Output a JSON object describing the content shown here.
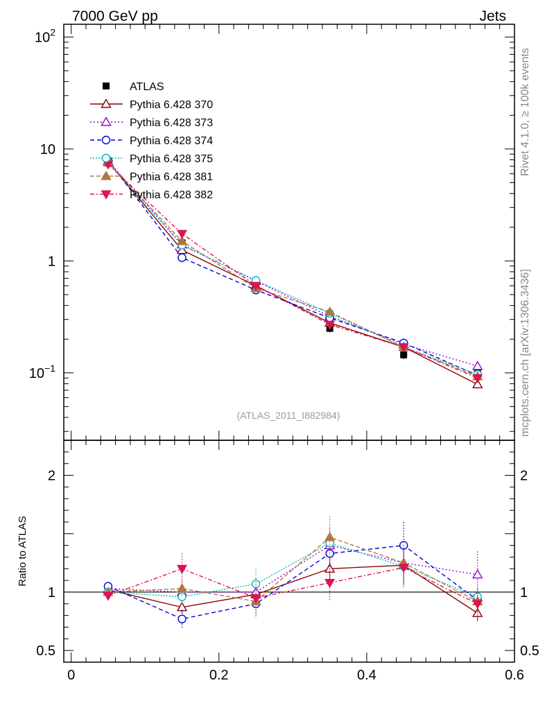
{
  "header": {
    "left": "7000 GeV pp",
    "right": "Jets"
  },
  "side_labels": {
    "rivet": "Rivet 4.1.0, ≥ 100k events",
    "mcplots": "mcplots.cern.ch [arXiv:1306.3436]"
  },
  "chart_data": {
    "type": "line",
    "analysis_label": "(ATLAS_2011_I882984)",
    "x": [
      0.05,
      0.15,
      0.25,
      0.35,
      0.45,
      0.55
    ],
    "xlim": [
      -0.01,
      0.6
    ],
    "x_ticks": [
      0,
      0.2,
      0.4,
      0.6
    ],
    "x_tick_labels": [
      "0",
      "0.2",
      "0.4",
      "0.6"
    ],
    "main": {
      "yscale": "log",
      "ylim": [
        0.025,
        130
      ],
      "y_tick_labels": [
        {
          "value": 100,
          "base": "10",
          "exp": "2"
        },
        {
          "value": 10,
          "base": "10",
          "exp": ""
        },
        {
          "value": 1,
          "base": "1",
          "exp": ""
        },
        {
          "value": 0.1,
          "base": "10",
          "exp": "−1"
        }
      ]
    },
    "ratio": {
      "ylabel": "Ratio to ATLAS",
      "ylim": [
        0.4,
        2.3
      ],
      "y_tick_labels": [
        {
          "value": 2,
          "label": "2"
        },
        {
          "value": 1,
          "label": "1"
        },
        {
          "value": 0.5,
          "label": "0.5"
        }
      ]
    },
    "data": {
      "name": "ATLAS",
      "color": "#000000",
      "values": [
        7.5,
        1.45,
        0.62,
        0.25,
        0.145,
        0.1
      ],
      "errors": [
        0.3,
        0.08,
        0.04,
        0.02,
        0.012,
        0.008
      ]
    },
    "series": [
      {
        "name": "Pythia 6.428 370",
        "color": "#8b0000",
        "marker": "tri-up-open",
        "dash": "",
        "values": [
          7.7,
          1.25,
          0.6,
          0.28,
          0.17,
          0.079
        ],
        "ratio": [
          1.02,
          0.87,
          0.98,
          1.2,
          1.23,
          0.82
        ],
        "rerr": [
          0.03,
          0.05,
          0.1,
          0.12,
          0.16,
          0.07
        ]
      },
      {
        "name": "Pythia 6.428 373",
        "color": "#9400d3",
        "marker": "tri-up-open",
        "dash": "2,3",
        "values": [
          7.8,
          1.4,
          0.66,
          0.32,
          0.18,
          0.115
        ],
        "ratio": [
          1.03,
          1.0,
          1.0,
          1.4,
          1.25,
          1.15
        ],
        "rerr": [
          0.03,
          0.07,
          0.12,
          0.15,
          0.18,
          0.2
        ]
      },
      {
        "name": "Pythia 6.428 374",
        "color": "#0000dd",
        "marker": "circle-open",
        "dash": "6,4",
        "values": [
          7.9,
          1.07,
          0.55,
          0.31,
          0.185,
          0.095
        ],
        "ratio": [
          1.05,
          0.77,
          0.9,
          1.33,
          1.4,
          0.93
        ],
        "rerr": [
          0.03,
          0.08,
          0.12,
          0.16,
          0.2,
          0.1
        ]
      },
      {
        "name": "Pythia 6.428 375",
        "color": "#00bbbb",
        "marker": "circle-open",
        "dash": "2,2",
        "values": [
          7.6,
          1.38,
          0.67,
          0.34,
          0.17,
          0.097
        ],
        "ratio": [
          1.0,
          0.96,
          1.07,
          1.42,
          1.22,
          0.96
        ],
        "rerr": [
          0.03,
          0.07,
          0.13,
          0.16,
          0.18,
          0.1
        ]
      },
      {
        "name": "Pythia 6.428 381",
        "color": "#b07840",
        "marker": "tri-up-filled",
        "dash": "6,3",
        "values": [
          7.6,
          1.5,
          0.57,
          0.35,
          0.17,
          0.093
        ],
        "ratio": [
          1.0,
          1.03,
          0.92,
          1.47,
          1.25,
          0.92
        ],
        "rerr": [
          0.03,
          0.07,
          0.12,
          0.18,
          0.18,
          0.12
        ]
      },
      {
        "name": "Pythia 6.428 382",
        "color": "#dc1450",
        "marker": "tri-down-filled",
        "dash": "6,3,2,3",
        "values": [
          7.3,
          1.75,
          0.6,
          0.27,
          0.17,
          0.09
        ],
        "ratio": [
          0.97,
          1.2,
          0.95,
          1.08,
          1.21,
          0.9
        ],
        "rerr": [
          0.03,
          0.13,
          0.14,
          0.15,
          0.17,
          0.1
        ]
      }
    ]
  }
}
